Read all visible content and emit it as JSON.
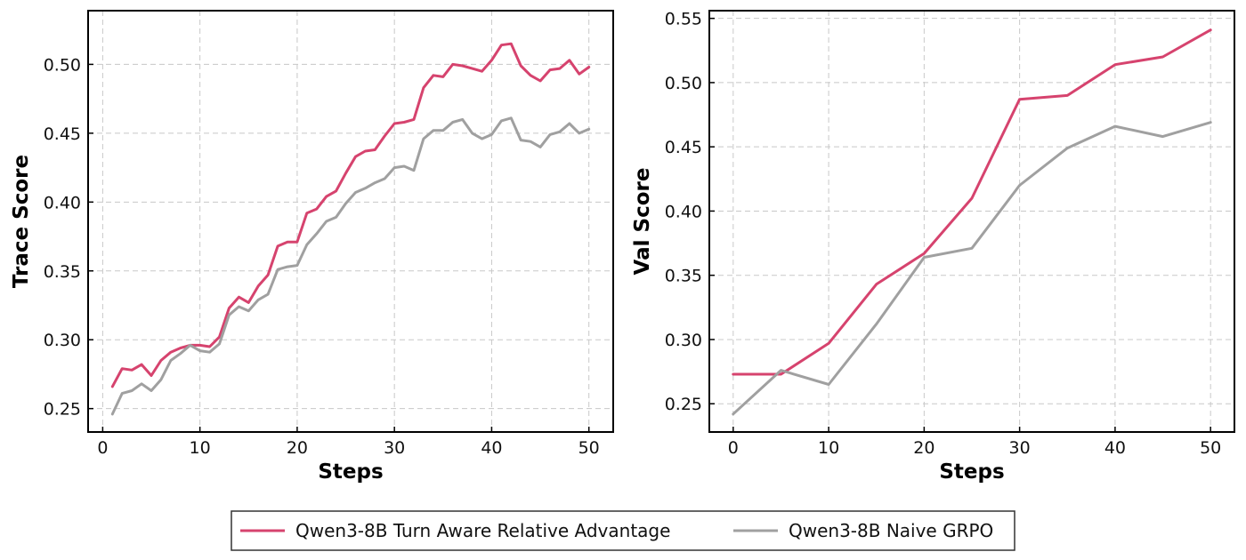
{
  "chart_data": [
    {
      "type": "line",
      "xlabel": "Steps",
      "ylabel": "Trace Score",
      "xlim": [
        -1.5,
        52.5
      ],
      "ylim": [
        0.233,
        0.539
      ],
      "xticks": [
        0,
        10,
        20,
        30,
        40,
        50
      ],
      "yticks": [
        0.25,
        0.3,
        0.35,
        0.4,
        0.45,
        0.5
      ],
      "grid": true,
      "x": [
        1,
        2,
        3,
        4,
        5,
        6,
        7,
        8,
        9,
        10,
        11,
        12,
        13,
        14,
        15,
        16,
        17,
        18,
        19,
        20,
        21,
        22,
        23,
        24,
        25,
        26,
        27,
        28,
        29,
        30,
        31,
        32,
        33,
        34,
        35,
        36,
        37,
        38,
        39,
        40,
        41,
        42,
        43,
        44,
        45,
        46,
        47,
        48,
        49,
        50
      ],
      "series": [
        {
          "name": "Qwen3-8B Turn Aware Relative Advantage",
          "color": "#d6436e",
          "values": [
            0.266,
            0.279,
            0.278,
            0.282,
            0.274,
            0.285,
            0.291,
            0.294,
            0.296,
            0.296,
            0.295,
            0.302,
            0.323,
            0.331,
            0.327,
            0.339,
            0.347,
            0.368,
            0.371,
            0.371,
            0.392,
            0.395,
            0.404,
            0.408,
            0.421,
            0.433,
            0.437,
            0.438,
            0.448,
            0.457,
            0.458,
            0.46,
            0.483,
            0.492,
            0.491,
            0.5,
            0.499,
            0.497,
            0.495,
            0.503,
            0.514,
            0.515,
            0.499,
            0.492,
            0.488,
            0.496,
            0.497,
            0.503,
            0.493,
            0.498
          ]
        },
        {
          "name": "Qwen3-8B Naive GRPO",
          "color": "#a0a0a0",
          "values": [
            0.246,
            0.261,
            0.263,
            0.268,
            0.263,
            0.271,
            0.285,
            0.29,
            0.296,
            0.292,
            0.291,
            0.297,
            0.318,
            0.324,
            0.321,
            0.329,
            0.333,
            0.351,
            0.353,
            0.354,
            0.369,
            0.377,
            0.386,
            0.389,
            0.399,
            0.407,
            0.41,
            0.414,
            0.417,
            0.425,
            0.426,
            0.423,
            0.446,
            0.452,
            0.452,
            0.458,
            0.46,
            0.45,
            0.446,
            0.449,
            0.459,
            0.461,
            0.445,
            0.444,
            0.44,
            0.449,
            0.451,
            0.457,
            0.45,
            0.453
          ]
        }
      ]
    },
    {
      "type": "line",
      "xlabel": "Steps",
      "ylabel": "Val Score",
      "xlim": [
        -2.5,
        52.5
      ],
      "ylim": [
        0.228,
        0.556
      ],
      "xticks": [
        0,
        10,
        20,
        30,
        40,
        50
      ],
      "yticks": [
        0.25,
        0.3,
        0.35,
        0.4,
        0.45,
        0.5,
        0.55
      ],
      "grid": true,
      "x": [
        0,
        5,
        10,
        15,
        20,
        25,
        30,
        35,
        40,
        45,
        50
      ],
      "series": [
        {
          "name": "Qwen3-8B Turn Aware Relative Advantage",
          "color": "#d6436e",
          "values": [
            0.273,
            0.273,
            0.297,
            0.343,
            0.367,
            0.41,
            0.487,
            0.49,
            0.514,
            0.52,
            0.541
          ]
        },
        {
          "name": "Qwen3-8B Naive GRPO",
          "color": "#a0a0a0",
          "values": [
            0.242,
            0.276,
            0.265,
            0.312,
            0.364,
            0.371,
            0.42,
            0.449,
            0.466,
            0.458,
            0.469
          ]
        }
      ]
    }
  ],
  "legend": {
    "placement": "bottom-center",
    "items": [
      {
        "label": "Qwen3-8B Turn Aware Relative Advantage",
        "color": "#d6436e"
      },
      {
        "label": "Qwen3-8B Naive GRPO",
        "color": "#a0a0a0"
      }
    ]
  }
}
